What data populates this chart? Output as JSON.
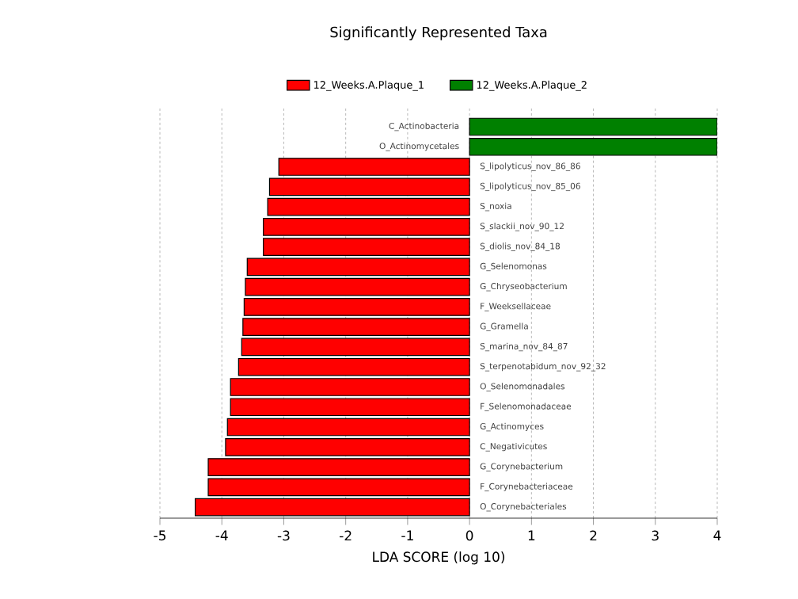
{
  "chart_data": {
    "type": "bar",
    "orientation": "horizontal",
    "title": "Significantly Represented Taxa",
    "xlabel": "LDA SCORE (log 10)",
    "categories": [
      "C_Actinobacteria",
      "O_Actinomycetales",
      "S_lipolyticus_nov_86_86",
      "S_lipolyticus_nov_85_06",
      "S_noxia",
      "S_slackii_nov_90_12",
      "S_diolis_nov_84_18",
      "G_Selenomonas",
      "G_Chryseobacterium",
      "F_Weeksellaceae",
      "G_Gramella",
      "S_marina_nov_84_87",
      "S_terpenotabidum_nov_92_32",
      "O_Selenomonadales",
      "F_Selenomonadaceae",
      "G_Actinomyces",
      "C_Negativicutes",
      "G_Corynebacterium",
      "F_Corynebacteriaceae",
      "O_Corynebacteriales"
    ],
    "series": [
      {
        "name": "12_Weeks.A.Plaque_1",
        "color": "#ff0000",
        "values": [
          null,
          null,
          -3.08,
          -3.23,
          -3.26,
          -3.33,
          -3.33,
          -3.59,
          -3.62,
          -3.64,
          -3.66,
          -3.68,
          -3.73,
          -3.86,
          -3.86,
          -3.91,
          -3.94,
          -4.22,
          -4.22,
          -4.43
        ]
      },
      {
        "name": "12_Weeks.A.Plaque_2",
        "color": "#008000",
        "values": [
          4.0,
          4.0,
          null,
          null,
          null,
          null,
          null,
          null,
          null,
          null,
          null,
          null,
          null,
          null,
          null,
          null,
          null,
          null,
          null,
          null
        ]
      }
    ],
    "xlim": [
      -5,
      4
    ],
    "xticks": [
      -5,
      -4,
      -3,
      -2,
      -1,
      0,
      1,
      2,
      3,
      4
    ],
    "grid": "x",
    "legend": "top"
  }
}
